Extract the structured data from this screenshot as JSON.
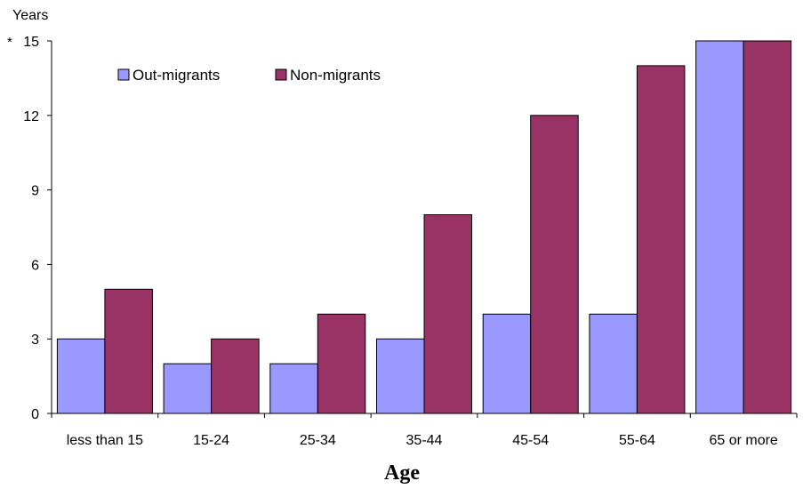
{
  "chart_data": {
    "type": "bar",
    "ylabel": "Years",
    "y_top_marker": "*",
    "xlabel": "Age",
    "categories": [
      "less than 15",
      "15-24",
      "25-34",
      "35-44",
      "45-54",
      "55-64",
      "65 or more"
    ],
    "series": [
      {
        "name": "Out-migrants",
        "color": "#9999ff",
        "values": [
          3,
          2,
          2,
          3,
          4,
          4,
          15
        ]
      },
      {
        "name": "Non-migrants",
        "color": "#993366",
        "values": [
          5,
          3,
          4,
          8,
          12,
          14,
          15
        ]
      }
    ],
    "ylim": [
      0,
      15
    ],
    "yticks": [
      0,
      3,
      6,
      9,
      12,
      15
    ],
    "grid": false,
    "legend_position": "top-left"
  }
}
